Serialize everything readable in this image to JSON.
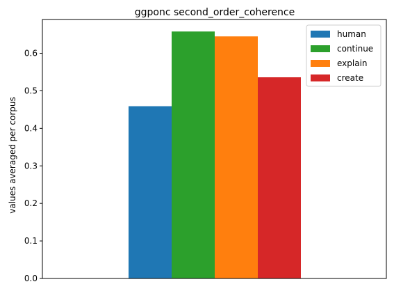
{
  "chart_data": {
    "type": "bar",
    "title": "ggponc second_order_coherence",
    "xlabel": "",
    "ylabel": "values averaged per corpus",
    "ylim": [
      0,
      0.69
    ],
    "yticks": [
      "0.0",
      "0.1",
      "0.2",
      "0.3",
      "0.4",
      "0.5",
      "0.6"
    ],
    "grid": false,
    "legend_position": "top-right",
    "series": [
      {
        "name": "human",
        "value": 0.459,
        "color": "#1f77b4"
      },
      {
        "name": "continue",
        "value": 0.658,
        "color": "#2ca02c"
      },
      {
        "name": "explain",
        "value": 0.645,
        "color": "#ff7f0e"
      },
      {
        "name": "create",
        "value": 0.536,
        "color": "#d62728"
      }
    ]
  }
}
